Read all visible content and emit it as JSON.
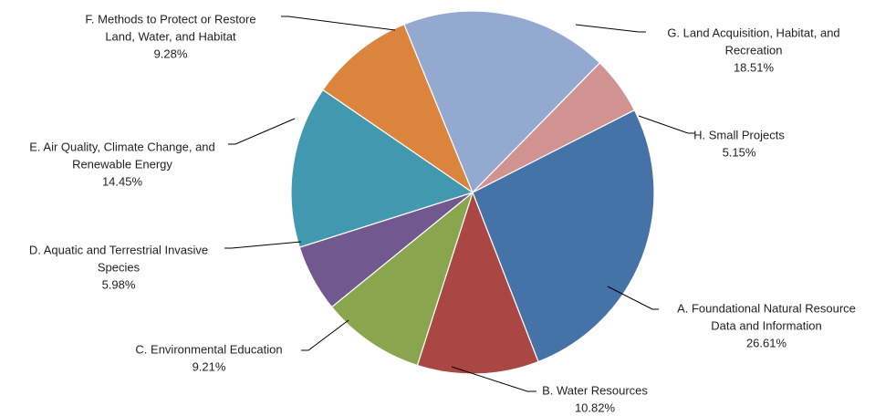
{
  "chart_data": {
    "type": "pie",
    "title": "",
    "legend": "none",
    "slices": [
      {
        "name_lines": [
          "A. Foundational Natural Resource",
          "Data and Information"
        ],
        "value_label": "26.61%",
        "value": 26.61,
        "color": "#4572A7"
      },
      {
        "name_lines": [
          "B. Water Resources"
        ],
        "value_label": "10.82%",
        "value": 10.82,
        "color": "#AA4643"
      },
      {
        "name_lines": [
          "C. Environmental Education"
        ],
        "value_label": "9.21%",
        "value": 9.21,
        "color": "#89A54E"
      },
      {
        "name_lines": [
          "D. Aquatic and Terrestrial Invasive",
          "Species"
        ],
        "value_label": "5.98%",
        "value": 5.98,
        "color": "#71588F"
      },
      {
        "name_lines": [
          "E. Air Quality, Climate Change, and",
          "Renewable Energy"
        ],
        "value_label": "14.45%",
        "value": 14.45,
        "color": "#4198AF"
      },
      {
        "name_lines": [
          "F. Methods to Protect or Restore",
          "Land, Water, and Habitat"
        ],
        "value_label": "9.28%",
        "value": 9.28,
        "color": "#DB843D"
      },
      {
        "name_lines": [
          "G. Land Acquisition, Habitat, and",
          "Recreation"
        ],
        "value_label": "18.51%",
        "value": 18.51,
        "color": "#93A9CF"
      },
      {
        "name_lines": [
          "H. Small Projects"
        ],
        "value_label": "5.15%",
        "value": 5.15,
        "color": "#D19392"
      }
    ]
  }
}
